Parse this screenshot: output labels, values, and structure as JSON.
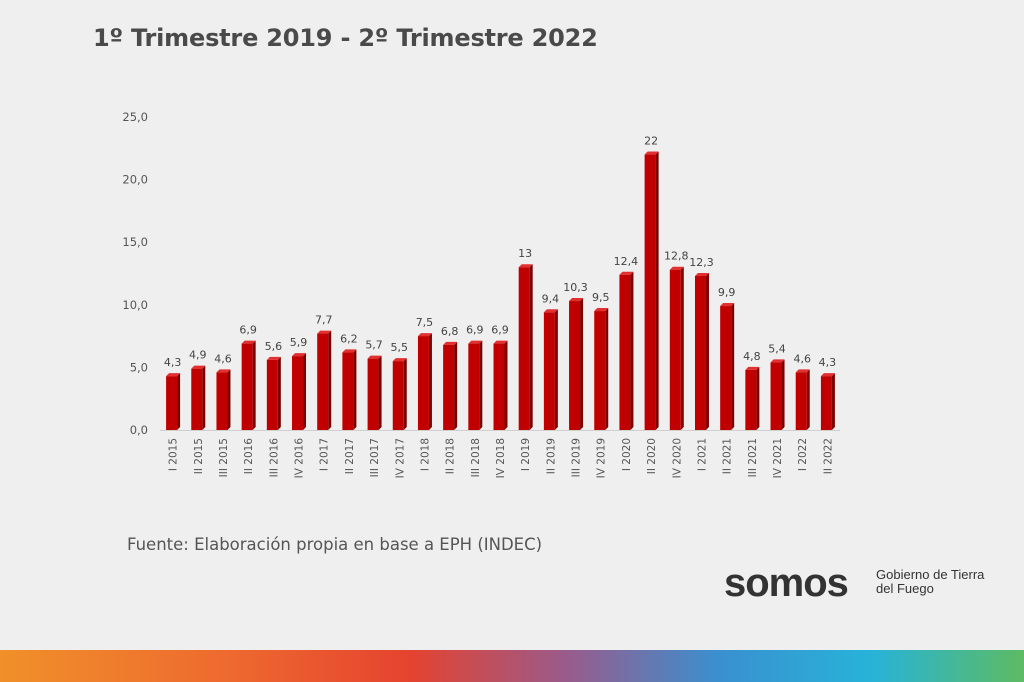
{
  "title": "1º Trimestre 2019 - 2º Trimestre 2022",
  "source": "Fuente: Elaboración propia en base a EPH (INDEC)",
  "logo": {
    "word": "somos",
    "subtitle": "Gobierno de Tierra del Fuego"
  },
  "colors": {
    "bar": "#c00000",
    "bar_side": "#7d0000",
    "bar_top": "#e23030",
    "axis_text": "#555555"
  },
  "chart_data": {
    "type": "bar",
    "title": "1º Trimestre 2019 - 2º Trimestre 2022",
    "xlabel": "",
    "ylabel": "",
    "ylim": [
      0,
      25
    ],
    "yticks": [
      "0,0",
      "5,0",
      "10,0",
      "15,0",
      "20,0",
      "25,0"
    ],
    "grid": false,
    "categories": [
      "I 2015",
      "II 2015",
      "III 2015",
      "II 2016",
      "III 2016",
      "IV 2016",
      "I 2017",
      "II 2017",
      "III 2017",
      "IV 2017",
      "I 2018",
      "II 2018",
      "III 2018",
      "IV 2018",
      "I 2019",
      "II 2019",
      "III 2019",
      "IV 2019",
      "I 2020",
      "II 2020",
      "IV 2020",
      "I 2021",
      "II 2021",
      "III 2021",
      "IV 2021",
      "I 2022",
      "II 2022"
    ],
    "values": [
      4.3,
      4.9,
      4.6,
      6.9,
      5.6,
      5.9,
      7.7,
      6.2,
      5.7,
      5.5,
      7.5,
      6.8,
      6.9,
      6.9,
      13,
      9.4,
      10.3,
      9.5,
      12.4,
      22,
      12.8,
      12.3,
      9.9,
      4.8,
      5.4,
      4.6,
      4.3
    ],
    "labels": [
      "4,3",
      "4,9",
      "4,6",
      "6,9",
      "5,6",
      "5,9",
      "7,7",
      "6,2",
      "5,7",
      "5,5",
      "7,5",
      "6,8",
      "6,9",
      "6,9",
      "13",
      "9,4",
      "10,3",
      "9,5",
      "12,4",
      "22",
      "12,8",
      "12,3",
      "9,9",
      "4,8",
      "5,4",
      "4,6",
      "4,3"
    ]
  }
}
